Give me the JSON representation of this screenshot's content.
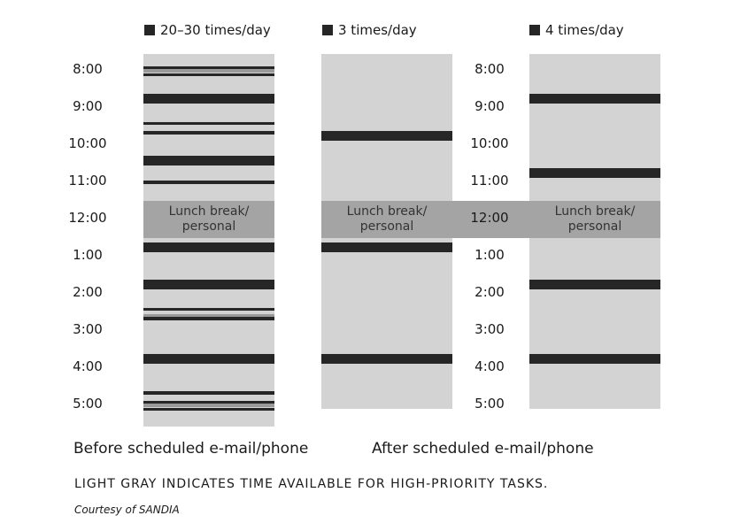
{
  "chart_data": {
    "type": "bar",
    "title": "",
    "hours": [
      "8:00",
      "9:00",
      "10:00",
      "11:00",
      "12:00",
      "1:00",
      "2:00",
      "3:00",
      "4:00",
      "5:00"
    ],
    "lunch_label": "Lunch break/ personal",
    "lunch_span": [
      "11:30",
      "12:30"
    ],
    "colors": {
      "available": "#d3d3d3",
      "busy": "#262626",
      "lunch": "#a4a4a4",
      "other": "#9a9a9a"
    },
    "columns": [
      {
        "legend": "20–30 times/day",
        "busy": [
          [
            "7:55",
            "8:00"
          ],
          [
            "8:07",
            "8:12"
          ],
          [
            "8:40",
            "8:55"
          ],
          [
            "9:25",
            "9:30"
          ],
          [
            "9:40",
            "9:45"
          ],
          [
            "10:20",
            "10:35"
          ],
          [
            "11:00",
            "11:05"
          ],
          [
            "12:40",
            "12:55"
          ],
          [
            "13:40",
            "13:55"
          ],
          [
            "14:25",
            "14:30"
          ],
          [
            "14:40",
            "14:45"
          ],
          [
            "15:40",
            "15:55"
          ],
          [
            "16:40",
            "16:45"
          ],
          [
            "16:55",
            "17:00"
          ],
          [
            "17:07",
            "17:12"
          ]
        ],
        "other": [
          [
            "8:00",
            "8:05"
          ],
          [
            "14:35",
            "14:40"
          ],
          [
            "17:00",
            "17:05"
          ]
        ]
      },
      {
        "legend": "3 times/day",
        "busy": [
          [
            "9:40",
            "9:55"
          ],
          [
            "12:40",
            "12:55"
          ],
          [
            "15:40",
            "15:55"
          ]
        ],
        "other": []
      },
      {
        "legend": "4 times/day",
        "busy": [
          [
            "8:40",
            "8:55"
          ],
          [
            "10:40",
            "10:55"
          ],
          [
            "13:40",
            "13:55"
          ],
          [
            "15:40",
            "15:55"
          ]
        ],
        "other": []
      }
    ]
  },
  "captions": {
    "before": "Before scheduled e-mail/phone",
    "after": "After scheduled e-mail/phone"
  },
  "note": "LIGHT GRAY INDICATES TIME AVAILABLE FOR HIGH-PRIORITY TASKS.",
  "credit": "Courtesy of SANDIA"
}
